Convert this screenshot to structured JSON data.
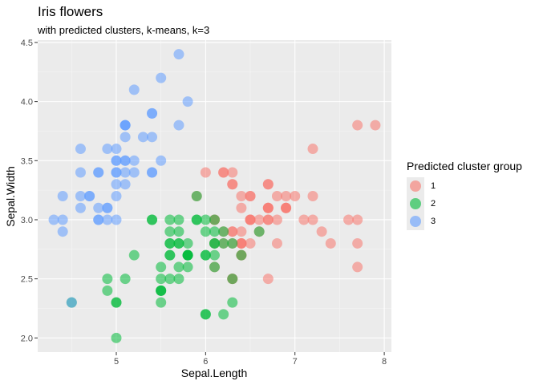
{
  "chart_data": {
    "type": "scatter",
    "title": "Iris flowers",
    "subtitle": "with predicted clusters, k-means, k=3",
    "xlabel": "Sepal.Length",
    "ylabel": "Sepal.Width",
    "xlim": [
      4.3,
      7.9
    ],
    "ylim": [
      2.0,
      4.4
    ],
    "x_ticks": [
      5,
      6,
      7,
      8
    ],
    "y_ticks": [
      2.0,
      2.5,
      3.0,
      3.5,
      4.0,
      4.5
    ],
    "x_tick_labels": [
      "5",
      "6",
      "7",
      "8"
    ],
    "y_tick_labels": [
      "2.0",
      "2.5",
      "3.0",
      "3.5",
      "4.0",
      "4.5"
    ],
    "grid": true,
    "legend": {
      "title": "Predicted cluster group",
      "placement": "right",
      "items": [
        {
          "label": "1",
          "color": "#F8766D"
        },
        {
          "label": "2",
          "color": "#00BA38"
        },
        {
          "label": "3",
          "color": "#619CFF"
        }
      ]
    },
    "series": [
      {
        "color": "#F8766D",
        "x": [
          7.0,
          6.4,
          6.9,
          6.5,
          6.3,
          6.6,
          6.7,
          6.2,
          6.1,
          6.3,
          6.1,
          6.4,
          6.6,
          6.8,
          6.7,
          6.7,
          6.3,
          6.5,
          6.2,
          6.4,
          6.3,
          7.1,
          6.3,
          6.5,
          7.6,
          7.3,
          6.7,
          7.2,
          6.5,
          6.4,
          6.8,
          6.4,
          6.5,
          7.7,
          7.7,
          6.9,
          7.7,
          6.7,
          7.2,
          6.2,
          6.1,
          6.4,
          7.2,
          7.4,
          7.9,
          6.4,
          6.3,
          6.1,
          7.7,
          6.3,
          6.4,
          6.9,
          6.7,
          6.9,
          6.8,
          6.7,
          6.7,
          6.3,
          6.5,
          6.2,
          6.0,
          5.9
        ],
        "y": [
          3.2,
          3.2,
          3.1,
          2.8,
          3.3,
          2.9,
          3.1,
          2.9,
          3.0,
          2.5,
          2.8,
          2.9,
          3.0,
          2.8,
          3.0,
          3.1,
          3.3,
          3.0,
          3.4,
          2.7,
          2.9,
          3.0,
          2.9,
          3.0,
          3.0,
          2.9,
          2.5,
          3.6,
          3.2,
          2.7,
          3.0,
          2.8,
          3.2,
          3.8,
          2.6,
          3.2,
          2.8,
          3.3,
          3.2,
          2.8,
          3.0,
          2.8,
          3.0,
          2.8,
          3.8,
          2.8,
          2.8,
          2.6,
          3.0,
          3.4,
          3.1,
          3.1,
          3.1,
          3.1,
          3.2,
          3.3,
          3.0,
          2.5,
          3.0,
          3.4,
          3.4,
          3.2
        ]
      },
      {
        "color": "#00BA38",
        "x": [
          5.5,
          5.7,
          4.9,
          5.2,
          5.0,
          5.9,
          6.0,
          5.6,
          5.8,
          5.6,
          5.9,
          6.1,
          5.7,
          5.5,
          5.5,
          5.8,
          6.0,
          5.4,
          5.6,
          5.5,
          5.5,
          6.1,
          5.8,
          5.0,
          5.6,
          5.7,
          5.7,
          6.2,
          5.1,
          5.7,
          6.0,
          6.3,
          4.9,
          5.6,
          5.8,
          6.0,
          5.8,
          6.2,
          5.7,
          5.6,
          5.9,
          6.3,
          6.1,
          6.0,
          5.4,
          6.0,
          5.5,
          6.3,
          6.2,
          6.1,
          6.6,
          6.1,
          4.5,
          5.8,
          5.6,
          5.0,
          6.1,
          6.4
        ],
        "y": [
          2.3,
          2.8,
          2.4,
          2.7,
          2.0,
          3.0,
          2.2,
          2.9,
          2.7,
          2.5,
          3.2,
          2.8,
          2.6,
          2.4,
          2.4,
          2.7,
          2.7,
          3.0,
          3.0,
          2.5,
          2.6,
          3.0,
          2.6,
          2.3,
          2.7,
          3.0,
          2.9,
          2.9,
          2.5,
          2.8,
          3.0,
          2.3,
          2.5,
          2.8,
          2.8,
          2.2,
          2.7,
          2.2,
          2.5,
          2.8,
          3.0,
          2.5,
          2.9,
          2.9,
          3.0,
          2.7,
          2.4,
          2.8,
          2.8,
          2.6,
          2.9,
          2.8,
          2.3,
          2.7,
          2.7,
          2.3,
          2.7,
          2.7
        ]
      },
      {
        "color": "#619CFF",
        "x": [
          5.1,
          4.9,
          4.7,
          4.6,
          5.0,
          5.4,
          4.6,
          5.0,
          4.4,
          4.9,
          5.4,
          4.8,
          4.8,
          4.3,
          5.8,
          5.7,
          5.4,
          5.1,
          5.7,
          5.1,
          5.4,
          5.1,
          4.6,
          5.1,
          4.8,
          5.0,
          5.0,
          5.2,
          5.2,
          4.7,
          4.8,
          5.4,
          5.2,
          5.5,
          4.9,
          5.0,
          5.5,
          4.9,
          4.4,
          5.1,
          5.0,
          4.5,
          4.4,
          5.0,
          5.1,
          4.8,
          5.1,
          4.6,
          5.3,
          5.0
        ],
        "y": [
          3.5,
          3.0,
          3.2,
          3.1,
          3.6,
          3.9,
          3.4,
          3.4,
          2.9,
          3.1,
          3.7,
          3.4,
          3.0,
          3.0,
          4.0,
          4.4,
          3.9,
          3.5,
          3.8,
          3.8,
          3.4,
          3.7,
          3.6,
          3.3,
          3.4,
          3.0,
          3.4,
          3.5,
          3.4,
          3.2,
          3.1,
          3.4,
          4.1,
          4.2,
          3.1,
          3.2,
          3.5,
          3.6,
          3.0,
          3.4,
          3.5,
          2.3,
          3.2,
          3.5,
          3.8,
          3.0,
          3.8,
          3.2,
          3.7,
          3.3
        ]
      }
    ]
  }
}
